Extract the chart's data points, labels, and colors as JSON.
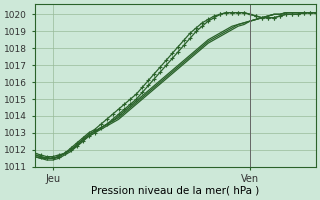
{
  "xlabel": "Pression niveau de la mer( hPa )",
  "ylim": [
    1011.0,
    1020.6
  ],
  "xlim": [
    0,
    47
  ],
  "yticks": [
    1011,
    1012,
    1013,
    1014,
    1015,
    1016,
    1017,
    1018,
    1019,
    1020
  ],
  "xtick_positions": [
    3,
    36
  ],
  "xtick_labels": [
    "Jeu",
    "Ven"
  ],
  "vline_x": 36,
  "bg_color": "#cde8d8",
  "grid_color": "#99bb99",
  "line_color": "#2a622a",
  "marker_lines": [
    [
      1011.8,
      1011.7,
      1011.6,
      1011.6,
      1011.7,
      1011.8,
      1012.0,
      1012.2,
      1012.5,
      1012.8,
      1013.0,
      1013.3,
      1013.5,
      1013.8,
      1014.1,
      1014.4,
      1014.7,
      1015.0,
      1015.4,
      1015.8,
      1016.2,
      1016.6,
      1017.0,
      1017.4,
      1017.8,
      1018.2,
      1018.6,
      1019.0,
      1019.3,
      1019.6,
      1019.8,
      1020.0,
      1020.1,
      1020.1,
      1020.1,
      1020.1,
      1020.0,
      1019.9,
      1019.8,
      1019.8,
      1019.8,
      1019.9,
      1020.0,
      1020.0,
      1020.0,
      1020.1,
      1020.1,
      1020.1
    ],
    [
      1011.7,
      1011.6,
      1011.5,
      1011.5,
      1011.6,
      1011.8,
      1012.1,
      1012.4,
      1012.7,
      1013.0,
      1013.2,
      1013.5,
      1013.8,
      1014.1,
      1014.4,
      1014.7,
      1015.0,
      1015.3,
      1015.7,
      1016.1,
      1016.5,
      1016.9,
      1017.3,
      1017.7,
      1018.1,
      1018.5,
      1018.9,
      1019.2,
      1019.5,
      1019.7,
      1019.9,
      1020.0,
      1020.1,
      1020.1,
      1020.1,
      1020.1,
      1020.0,
      1019.9,
      1019.8,
      1019.8,
      1019.8,
      1019.9,
      1020.0,
      1020.0,
      1020.0,
      1020.1,
      1020.1,
      1020.1
    ]
  ],
  "smooth_lines": [
    [
      1011.7,
      1011.6,
      1011.5,
      1011.5,
      1011.6,
      1011.8,
      1012.0,
      1012.3,
      1012.6,
      1012.9,
      1013.1,
      1013.3,
      1013.5,
      1013.7,
      1014.0,
      1014.3,
      1014.6,
      1014.9,
      1015.2,
      1015.5,
      1015.8,
      1016.1,
      1016.4,
      1016.7,
      1017.0,
      1017.3,
      1017.6,
      1017.9,
      1018.2,
      1018.5,
      1018.7,
      1018.9,
      1019.1,
      1019.3,
      1019.4,
      1019.5,
      1019.6,
      1019.7,
      1019.8,
      1019.9,
      1020.0,
      1020.0,
      1020.1,
      1020.1,
      1020.1,
      1020.1,
      1020.1,
      1020.1
    ],
    [
      1011.6,
      1011.5,
      1011.5,
      1011.5,
      1011.6,
      1011.8,
      1012.0,
      1012.3,
      1012.6,
      1012.9,
      1013.1,
      1013.3,
      1013.5,
      1013.7,
      1013.9,
      1014.2,
      1014.5,
      1014.8,
      1015.1,
      1015.4,
      1015.7,
      1016.0,
      1016.3,
      1016.6,
      1016.9,
      1017.2,
      1017.5,
      1017.8,
      1018.1,
      1018.4,
      1018.6,
      1018.8,
      1019.0,
      1019.2,
      1019.4,
      1019.5,
      1019.6,
      1019.7,
      1019.8,
      1019.9,
      1020.0,
      1020.0,
      1020.1,
      1020.1,
      1020.1,
      1020.1,
      1020.1,
      1020.1
    ],
    [
      1011.6,
      1011.5,
      1011.4,
      1011.4,
      1011.5,
      1011.7,
      1011.9,
      1012.2,
      1012.5,
      1012.8,
      1013.0,
      1013.2,
      1013.4,
      1013.6,
      1013.8,
      1014.1,
      1014.4,
      1014.7,
      1015.0,
      1015.3,
      1015.6,
      1015.9,
      1016.2,
      1016.5,
      1016.8,
      1017.1,
      1017.4,
      1017.7,
      1018.0,
      1018.3,
      1018.5,
      1018.7,
      1018.9,
      1019.1,
      1019.3,
      1019.4,
      1019.6,
      1019.7,
      1019.8,
      1019.9,
      1020.0,
      1020.0,
      1020.1,
      1020.1,
      1020.1,
      1020.1,
      1020.1,
      1020.1
    ]
  ]
}
